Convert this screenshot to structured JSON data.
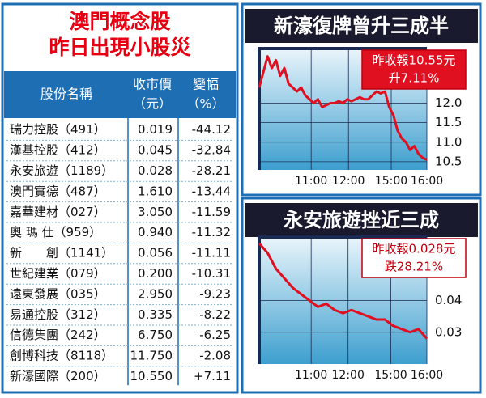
{
  "table": {
    "title": [
      "澳門概念股",
      "昨日出現小股災"
    ],
    "header": [
      [
        "股份名稱"
      ],
      [
        "收市價",
        "（元）"
      ],
      [
        "變幅",
        "（%）"
      ]
    ],
    "rows": [
      [
        "瑞力控股（491）",
        "0.019",
        "-44.12"
      ],
      [
        "漢基控股（412）",
        "0.045",
        "-32.84"
      ],
      [
        "永安旅遊（1189）",
        "0.028",
        "-28.21"
      ],
      [
        "澳門實德（487）",
        "1.610",
        "-13.44"
      ],
      [
        "嘉華建材（027）",
        "3.050",
        "-11.59"
      ],
      [
        "奧 瑪 仕（959）",
        "0.940",
        "-11.32"
      ],
      [
        "新　　創（1141）",
        "0.056",
        "-11.11"
      ],
      [
        "世紀建業（079）",
        "0.200",
        "-10.31"
      ],
      [
        "遠東發展（035）",
        "2.950",
        "-9.23"
      ],
      [
        "易通控股（312）",
        "0.335",
        "-8.22"
      ],
      [
        "信德集團（242）",
        "6.750",
        "-6.25"
      ],
      [
        "創博科技（8118）",
        "11.750",
        "-2.08"
      ],
      [
        "新濠國際（200）",
        "10.550",
        "+7.11"
      ]
    ]
  },
  "chart_data": [
    {
      "type": "line",
      "title": "新濠復牌曾升三成半",
      "annotation": [
        "昨收報10.55元",
        "升7.11%"
      ],
      "color": "#e01020",
      "values": [
        12.4,
        12.8,
        13.2,
        12.9,
        13.1,
        12.7,
        12.9,
        12.5,
        12.4,
        12.3,
        12.4,
        12.2,
        12.1,
        12.0,
        12.1,
        11.9,
        11.95,
        12.0,
        12.0,
        12.05,
        12.0,
        12.1,
        12.05,
        12.1,
        12.15,
        12.1,
        12.1,
        12.2,
        12.3,
        12.25,
        12.3,
        11.9,
        11.7,
        11.3,
        11.1,
        11.0,
        10.8,
        10.9,
        10.7,
        10.6,
        10.55
      ],
      "xlim": [
        0,
        40
      ],
      "xticks": [
        {
          "value": 12.4,
          "label": "11:00"
        },
        {
          "value": 21.3,
          "label": "12:00"
        },
        {
          "value": 31.5,
          "label": "15:00"
        },
        {
          "value": 40,
          "label": "16:00"
        }
      ],
      "ylim": [
        10.29,
        13.4
      ],
      "yticks": [
        {
          "value": 12,
          "label": "12.0"
        },
        11.5,
        {
          "value": 11,
          "label": "11.0"
        },
        10.5
      ],
      "grid": true
    },
    {
      "type": "line",
      "title": "永安旅遊挫近三成",
      "annotation": [
        "昨收報0.028元",
        "跌28.21%"
      ],
      "color": "#e01020",
      "values": [
        0.058,
        0.055,
        0.05,
        0.047,
        0.044,
        0.042,
        0.04,
        0.038,
        0.039,
        0.037,
        0.036,
        0.037,
        0.036,
        0.035,
        0.034,
        0.034,
        0.032,
        0.031,
        0.03,
        0.031,
        0.028
      ],
      "xlim": [
        0,
        20
      ],
      "xticks": [
        {
          "value": 6.2,
          "label": "11:00"
        },
        {
          "value": 10.6,
          "label": "12:00"
        },
        {
          "value": 15.7,
          "label": "15:00"
        },
        {
          "value": 20,
          "label": "16:00"
        }
      ],
      "ylim": [
        0.02,
        0.06
      ],
      "yticks": [
        0.04,
        0.03
      ],
      "grid": true
    }
  ]
}
